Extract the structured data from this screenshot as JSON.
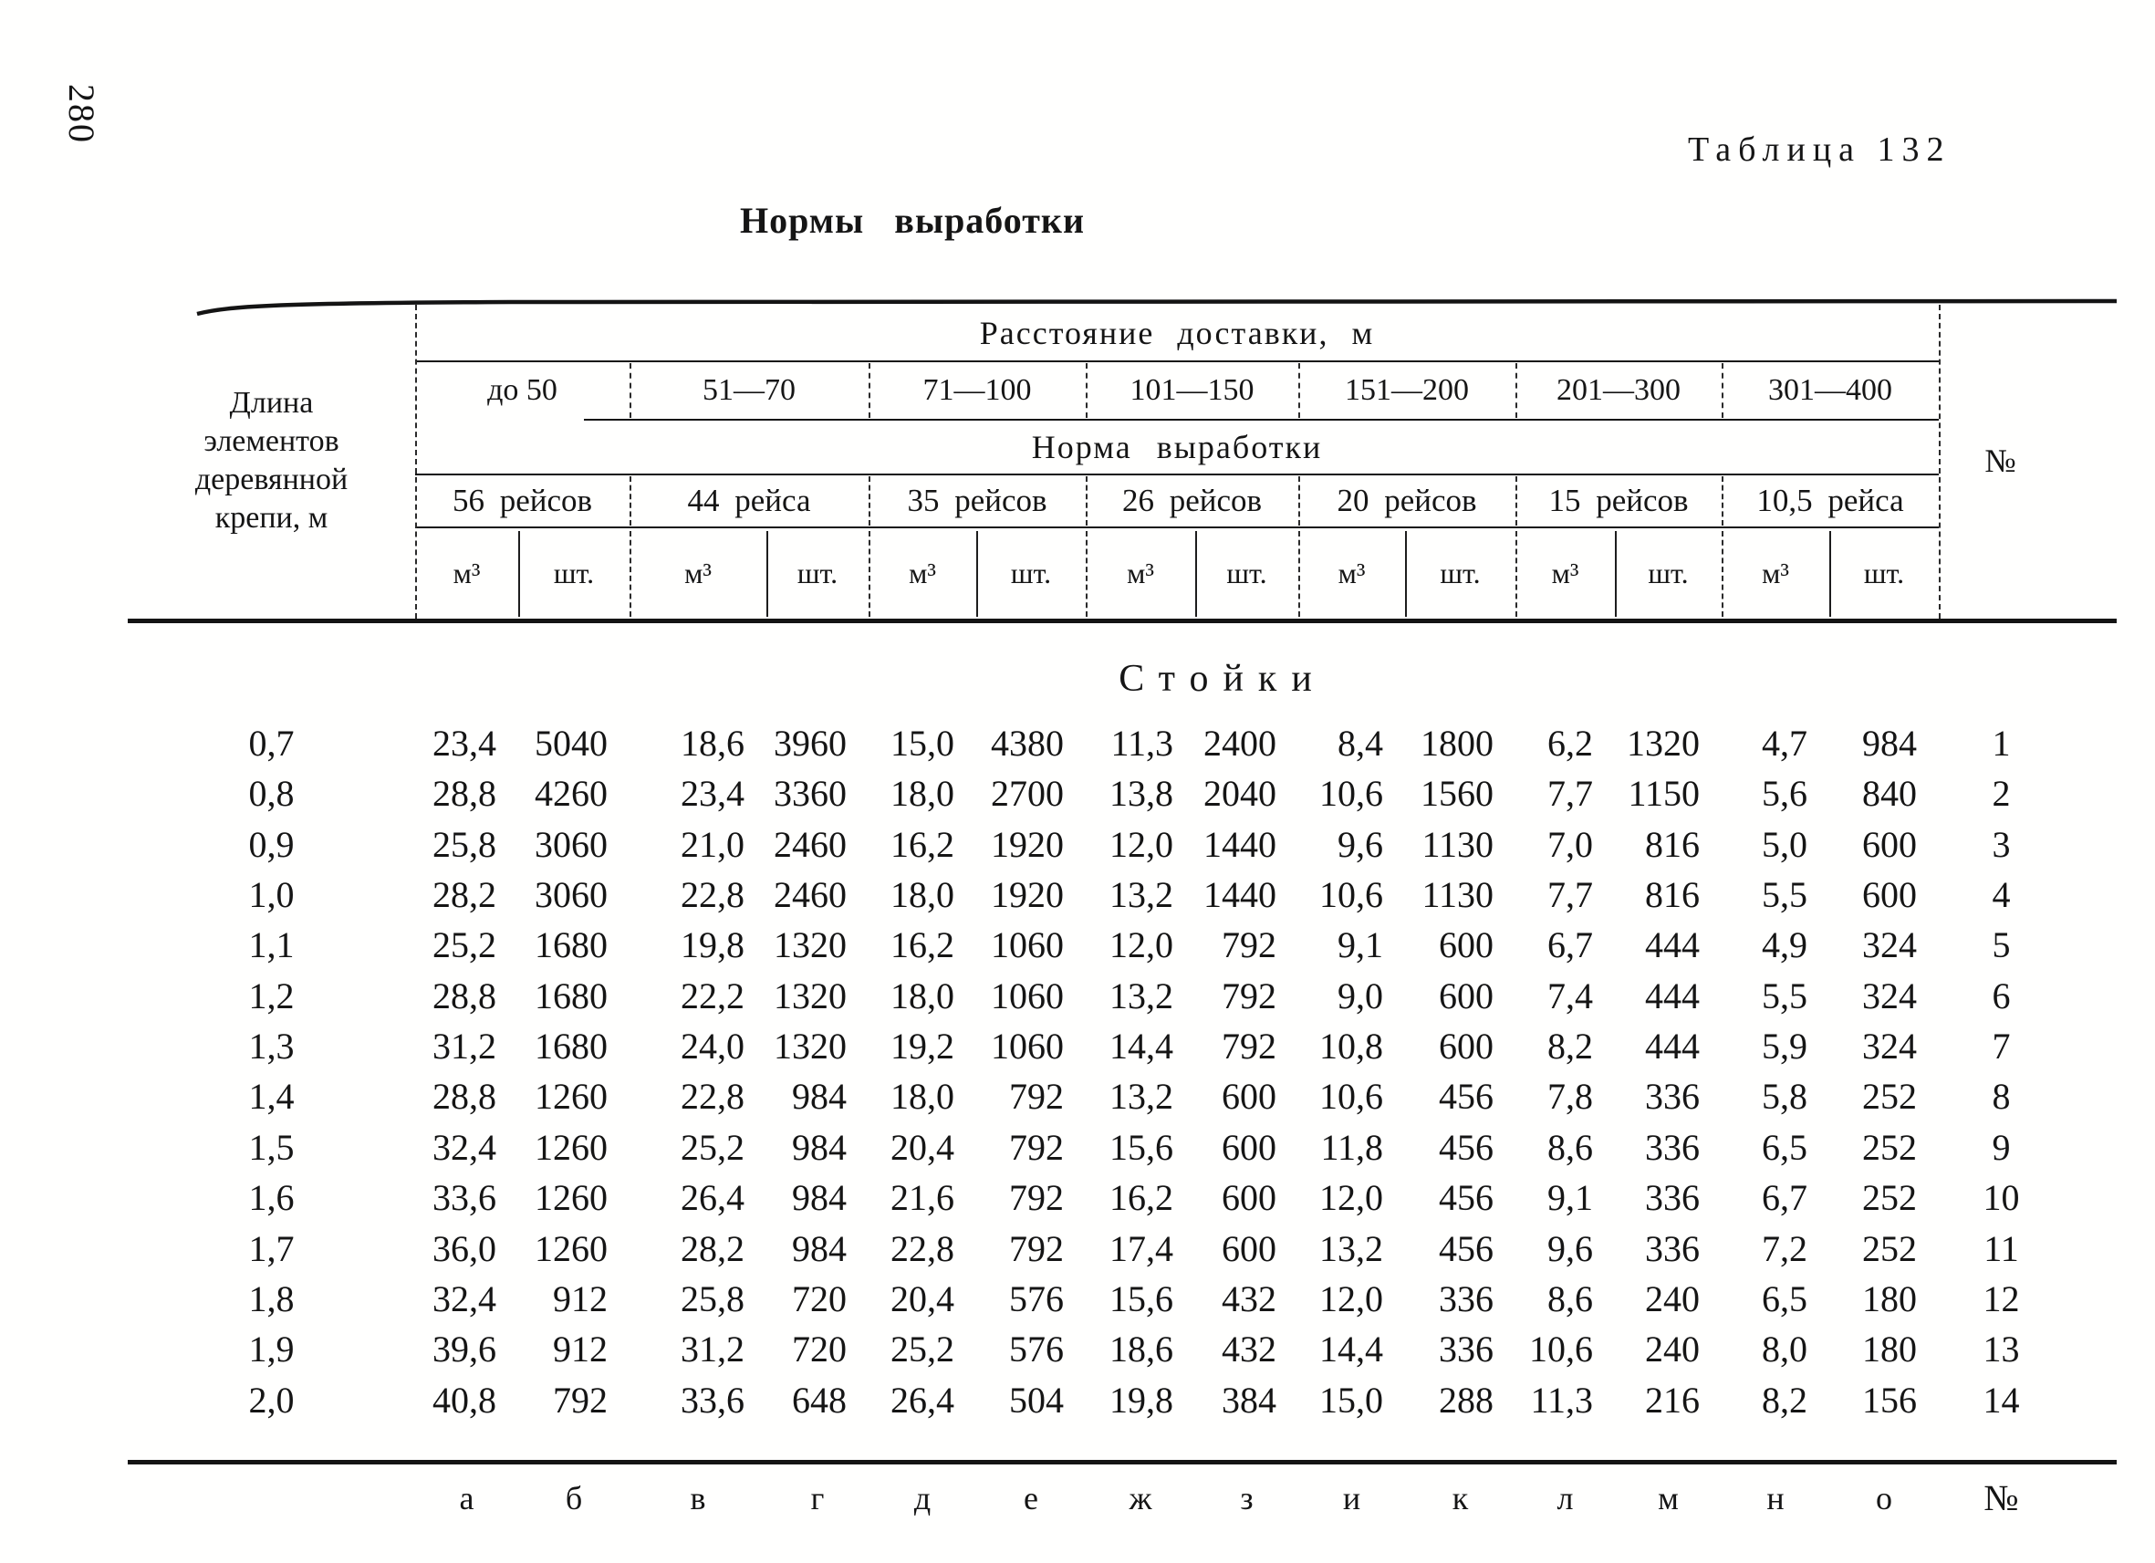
{
  "page": {
    "number": "280",
    "table_label": "Таблица 132",
    "title": "Нормы выработки"
  },
  "table": {
    "distance_header": "Расстояние доставки, м",
    "norm_header": "Норма выработки",
    "left_header": "Длина элементов деревянной крепи, м",
    "number_col_header": "№",
    "distance_ranges": [
      "до 50",
      "51—70",
      "71—100",
      "101—150",
      "151—200",
      "201—300",
      "301—400"
    ],
    "trip_counts": [
      "56 рейсов",
      "44 рейса",
      "35 рейсов",
      "26 рейсов",
      "20 рейсов",
      "15 рейсов",
      "10,5 рейса"
    ],
    "unit_m3": "м³",
    "unit_sht": "шт.",
    "section_title": "Стойки",
    "rows": [
      {
        "length": "0,7",
        "values": [
          "23,4",
          "5040",
          "18,6",
          "3960",
          "15,0",
          "4380",
          "11,3",
          "2400",
          "8,4",
          "1800",
          "6,2",
          "1320",
          "4,7",
          "984"
        ],
        "num": "1"
      },
      {
        "length": "0,8",
        "values": [
          "28,8",
          "4260",
          "23,4",
          "3360",
          "18,0",
          "2700",
          "13,8",
          "2040",
          "10,6",
          "1560",
          "7,7",
          "1150",
          "5,6",
          "840"
        ],
        "num": "2"
      },
      {
        "length": "0,9",
        "values": [
          "25,8",
          "3060",
          "21,0",
          "2460",
          "16,2",
          "1920",
          "12,0",
          "1440",
          "9,6",
          "1130",
          "7,0",
          "816",
          "5,0",
          "600"
        ],
        "num": "3"
      },
      {
        "length": "1,0",
        "values": [
          "28,2",
          "3060",
          "22,8",
          "2460",
          "18,0",
          "1920",
          "13,2",
          "1440",
          "10,6",
          "1130",
          "7,7",
          "816",
          "5,5",
          "600"
        ],
        "num": "4"
      },
      {
        "length": "1,1",
        "values": [
          "25,2",
          "1680",
          "19,8",
          "1320",
          "16,2",
          "1060",
          "12,0",
          "792",
          "9,1",
          "600",
          "6,7",
          "444",
          "4,9",
          "324"
        ],
        "num": "5"
      },
      {
        "length": "1,2",
        "values": [
          "28,8",
          "1680",
          "22,2",
          "1320",
          "18,0",
          "1060",
          "13,2",
          "792",
          "9,0",
          "600",
          "7,4",
          "444",
          "5,5",
          "324"
        ],
        "num": "6"
      },
      {
        "length": "1,3",
        "values": [
          "31,2",
          "1680",
          "24,0",
          "1320",
          "19,2",
          "1060",
          "14,4",
          "792",
          "10,8",
          "600",
          "8,2",
          "444",
          "5,9",
          "324"
        ],
        "num": "7"
      },
      {
        "length": "1,4",
        "values": [
          "28,8",
          "1260",
          "22,8",
          "984",
          "18,0",
          "792",
          "13,2",
          "600",
          "10,6",
          "456",
          "7,8",
          "336",
          "5,8",
          "252"
        ],
        "num": "8"
      },
      {
        "length": "1,5",
        "values": [
          "32,4",
          "1260",
          "25,2",
          "984",
          "20,4",
          "792",
          "15,6",
          "600",
          "11,8",
          "456",
          "8,6",
          "336",
          "6,5",
          "252"
        ],
        "num": "9"
      },
      {
        "length": "1,6",
        "values": [
          "33,6",
          "1260",
          "26,4",
          "984",
          "21,6",
          "792",
          "16,2",
          "600",
          "12,0",
          "456",
          "9,1",
          "336",
          "6,7",
          "252"
        ],
        "num": "10"
      },
      {
        "length": "1,7",
        "values": [
          "36,0",
          "1260",
          "28,2",
          "984",
          "22,8",
          "792",
          "17,4",
          "600",
          "13,2",
          "456",
          "9,6",
          "336",
          "7,2",
          "252"
        ],
        "num": "11"
      },
      {
        "length": "1,8",
        "values": [
          "32,4",
          "912",
          "25,8",
          "720",
          "20,4",
          "576",
          "15,6",
          "432",
          "12,0",
          "336",
          "8,6",
          "240",
          "6,5",
          "180"
        ],
        "num": "12"
      },
      {
        "length": "1,9",
        "values": [
          "39,6",
          "912",
          "31,2",
          "720",
          "25,2",
          "576",
          "18,6",
          "432",
          "14,4",
          "336",
          "10,6",
          "240",
          "8,0",
          "180"
        ],
        "num": "13"
      },
      {
        "length": "2,0",
        "values": [
          "40,8",
          "792",
          "33,6",
          "648",
          "26,4",
          "504",
          "19,8",
          "384",
          "15,0",
          "288",
          "11,3",
          "216",
          "8,2",
          "156"
        ],
        "num": "14"
      }
    ],
    "footer_letters": [
      "а",
      "б",
      "в",
      "г",
      "д",
      "е",
      "ж",
      "з",
      "и",
      "к",
      "л",
      "м",
      "н",
      "о"
    ],
    "footer_number_label": "№"
  }
}
